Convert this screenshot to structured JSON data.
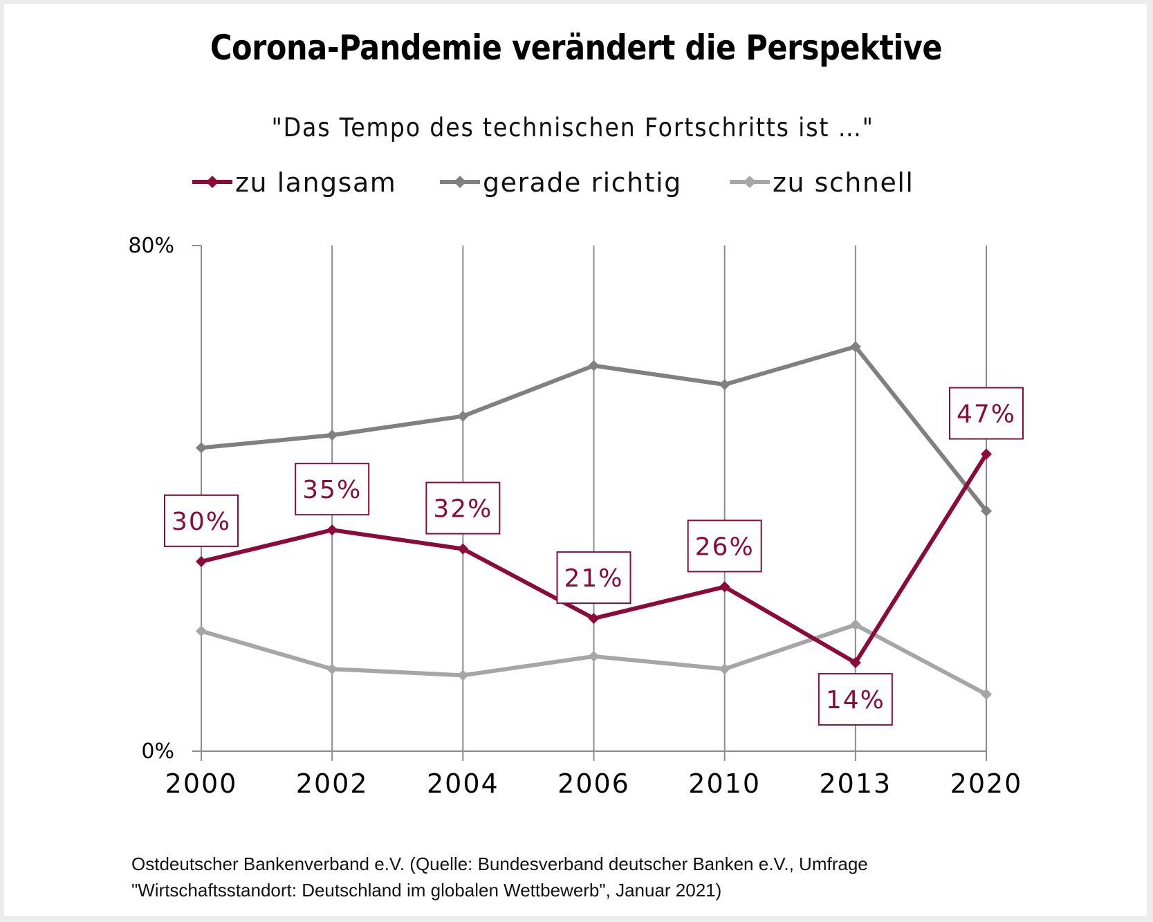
{
  "chart_data": {
    "type": "line",
    "title": "Corona-Pandemie verändert die Perspektive",
    "subtitle": "\"Das Tempo des technischen Fortschritts ist …\"",
    "xlabel": "",
    "ylabel": "",
    "categories": [
      "2000",
      "2002",
      "2004",
      "2006",
      "2010",
      "2013",
      "2020"
    ],
    "ylim": [
      0,
      80
    ],
    "yticks": [
      "0%",
      "80%"
    ],
    "ytick_values": [
      0,
      80
    ],
    "grid": "vertical",
    "legend_position": "top",
    "series": [
      {
        "name": "zu langsam",
        "color": "#8b0a3a",
        "values": [
          30,
          35,
          32,
          21,
          26,
          14,
          47
        ],
        "data_labels": [
          "30%",
          "35%",
          "32%",
          "21%",
          "26%",
          "14%",
          "47%"
        ],
        "label_placement": [
          "above",
          "above",
          "above",
          "above",
          "above",
          "below",
          "above"
        ]
      },
      {
        "name": "gerade richtig",
        "color": "#808080",
        "values": [
          48,
          50,
          53,
          61,
          58,
          64,
          38
        ]
      },
      {
        "name": "zu schnell",
        "color": "#a6a6a6",
        "values": [
          19,
          13,
          12,
          15,
          13,
          20,
          9
        ]
      }
    ]
  },
  "source": {
    "line1": "Ostdeutscher Bankenverband e.V. (Quelle: Bundesverband deutscher Banken e.V., Umfrage",
    "line2": "\"Wirtschaftsstandort: Deutschland im globalen Wettbewerb\", Januar 2021)"
  }
}
